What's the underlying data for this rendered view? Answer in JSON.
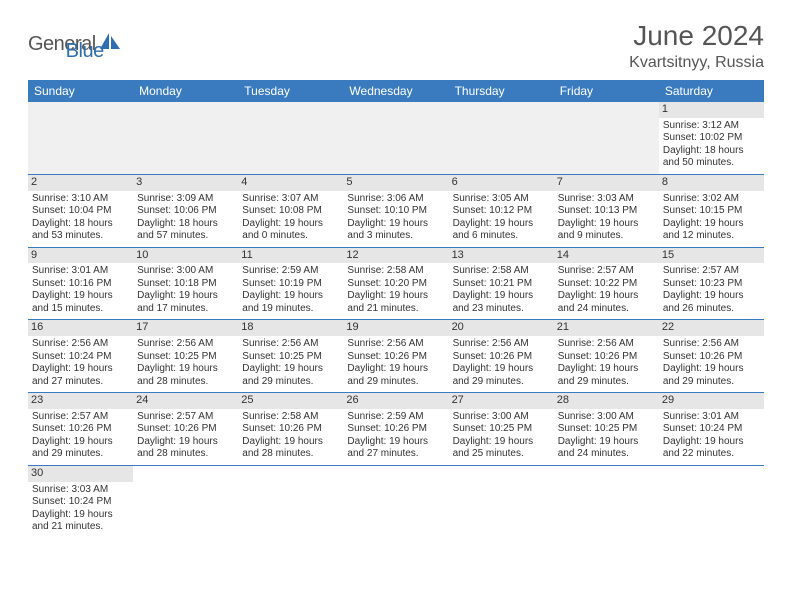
{
  "brand": {
    "part1": "General",
    "part2": "Blue",
    "logo_color": "#2f6fb0"
  },
  "header": {
    "month_title": "June 2024",
    "location": "Kvartsitnyy, Russia"
  },
  "styling": {
    "header_bg": "#3a7bbf",
    "header_text": "#ffffff",
    "daynum_bg": "#e6e6e6",
    "cell_border": "#3a7bbf",
    "title_fontsize": 28,
    "location_fontsize": 16,
    "dayhead_fontsize": 12,
    "daynum_fontsize": 11,
    "body_fontsize": 10
  },
  "day_headers": [
    "Sunday",
    "Monday",
    "Tuesday",
    "Wednesday",
    "Thursday",
    "Friday",
    "Saturday"
  ],
  "weeks": [
    [
      null,
      null,
      null,
      null,
      null,
      null,
      {
        "n": "1",
        "sunrise": "Sunrise: 3:12 AM",
        "sunset": "Sunset: 10:02 PM",
        "daylight": "Daylight: 18 hours and 50 minutes."
      }
    ],
    [
      {
        "n": "2",
        "sunrise": "Sunrise: 3:10 AM",
        "sunset": "Sunset: 10:04 PM",
        "daylight": "Daylight: 18 hours and 53 minutes."
      },
      {
        "n": "3",
        "sunrise": "Sunrise: 3:09 AM",
        "sunset": "Sunset: 10:06 PM",
        "daylight": "Daylight: 18 hours and 57 minutes."
      },
      {
        "n": "4",
        "sunrise": "Sunrise: 3:07 AM",
        "sunset": "Sunset: 10:08 PM",
        "daylight": "Daylight: 19 hours and 0 minutes."
      },
      {
        "n": "5",
        "sunrise": "Sunrise: 3:06 AM",
        "sunset": "Sunset: 10:10 PM",
        "daylight": "Daylight: 19 hours and 3 minutes."
      },
      {
        "n": "6",
        "sunrise": "Sunrise: 3:05 AM",
        "sunset": "Sunset: 10:12 PM",
        "daylight": "Daylight: 19 hours and 6 minutes."
      },
      {
        "n": "7",
        "sunrise": "Sunrise: 3:03 AM",
        "sunset": "Sunset: 10:13 PM",
        "daylight": "Daylight: 19 hours and 9 minutes."
      },
      {
        "n": "8",
        "sunrise": "Sunrise: 3:02 AM",
        "sunset": "Sunset: 10:15 PM",
        "daylight": "Daylight: 19 hours and 12 minutes."
      }
    ],
    [
      {
        "n": "9",
        "sunrise": "Sunrise: 3:01 AM",
        "sunset": "Sunset: 10:16 PM",
        "daylight": "Daylight: 19 hours and 15 minutes."
      },
      {
        "n": "10",
        "sunrise": "Sunrise: 3:00 AM",
        "sunset": "Sunset: 10:18 PM",
        "daylight": "Daylight: 19 hours and 17 minutes."
      },
      {
        "n": "11",
        "sunrise": "Sunrise: 2:59 AM",
        "sunset": "Sunset: 10:19 PM",
        "daylight": "Daylight: 19 hours and 19 minutes."
      },
      {
        "n": "12",
        "sunrise": "Sunrise: 2:58 AM",
        "sunset": "Sunset: 10:20 PM",
        "daylight": "Daylight: 19 hours and 21 minutes."
      },
      {
        "n": "13",
        "sunrise": "Sunrise: 2:58 AM",
        "sunset": "Sunset: 10:21 PM",
        "daylight": "Daylight: 19 hours and 23 minutes."
      },
      {
        "n": "14",
        "sunrise": "Sunrise: 2:57 AM",
        "sunset": "Sunset: 10:22 PM",
        "daylight": "Daylight: 19 hours and 24 minutes."
      },
      {
        "n": "15",
        "sunrise": "Sunrise: 2:57 AM",
        "sunset": "Sunset: 10:23 PM",
        "daylight": "Daylight: 19 hours and 26 minutes."
      }
    ],
    [
      {
        "n": "16",
        "sunrise": "Sunrise: 2:56 AM",
        "sunset": "Sunset: 10:24 PM",
        "daylight": "Daylight: 19 hours and 27 minutes."
      },
      {
        "n": "17",
        "sunrise": "Sunrise: 2:56 AM",
        "sunset": "Sunset: 10:25 PM",
        "daylight": "Daylight: 19 hours and 28 minutes."
      },
      {
        "n": "18",
        "sunrise": "Sunrise: 2:56 AM",
        "sunset": "Sunset: 10:25 PM",
        "daylight": "Daylight: 19 hours and 29 minutes."
      },
      {
        "n": "19",
        "sunrise": "Sunrise: 2:56 AM",
        "sunset": "Sunset: 10:26 PM",
        "daylight": "Daylight: 19 hours and 29 minutes."
      },
      {
        "n": "20",
        "sunrise": "Sunrise: 2:56 AM",
        "sunset": "Sunset: 10:26 PM",
        "daylight": "Daylight: 19 hours and 29 minutes."
      },
      {
        "n": "21",
        "sunrise": "Sunrise: 2:56 AM",
        "sunset": "Sunset: 10:26 PM",
        "daylight": "Daylight: 19 hours and 29 minutes."
      },
      {
        "n": "22",
        "sunrise": "Sunrise: 2:56 AM",
        "sunset": "Sunset: 10:26 PM",
        "daylight": "Daylight: 19 hours and 29 minutes."
      }
    ],
    [
      {
        "n": "23",
        "sunrise": "Sunrise: 2:57 AM",
        "sunset": "Sunset: 10:26 PM",
        "daylight": "Daylight: 19 hours and 29 minutes."
      },
      {
        "n": "24",
        "sunrise": "Sunrise: 2:57 AM",
        "sunset": "Sunset: 10:26 PM",
        "daylight": "Daylight: 19 hours and 28 minutes."
      },
      {
        "n": "25",
        "sunrise": "Sunrise: 2:58 AM",
        "sunset": "Sunset: 10:26 PM",
        "daylight": "Daylight: 19 hours and 28 minutes."
      },
      {
        "n": "26",
        "sunrise": "Sunrise: 2:59 AM",
        "sunset": "Sunset: 10:26 PM",
        "daylight": "Daylight: 19 hours and 27 minutes."
      },
      {
        "n": "27",
        "sunrise": "Sunrise: 3:00 AM",
        "sunset": "Sunset: 10:25 PM",
        "daylight": "Daylight: 19 hours and 25 minutes."
      },
      {
        "n": "28",
        "sunrise": "Sunrise: 3:00 AM",
        "sunset": "Sunset: 10:25 PM",
        "daylight": "Daylight: 19 hours and 24 minutes."
      },
      {
        "n": "29",
        "sunrise": "Sunrise: 3:01 AM",
        "sunset": "Sunset: 10:24 PM",
        "daylight": "Daylight: 19 hours and 22 minutes."
      }
    ],
    [
      {
        "n": "30",
        "sunrise": "Sunrise: 3:03 AM",
        "sunset": "Sunset: 10:24 PM",
        "daylight": "Daylight: 19 hours and 21 minutes."
      },
      null,
      null,
      null,
      null,
      null,
      null
    ]
  ]
}
